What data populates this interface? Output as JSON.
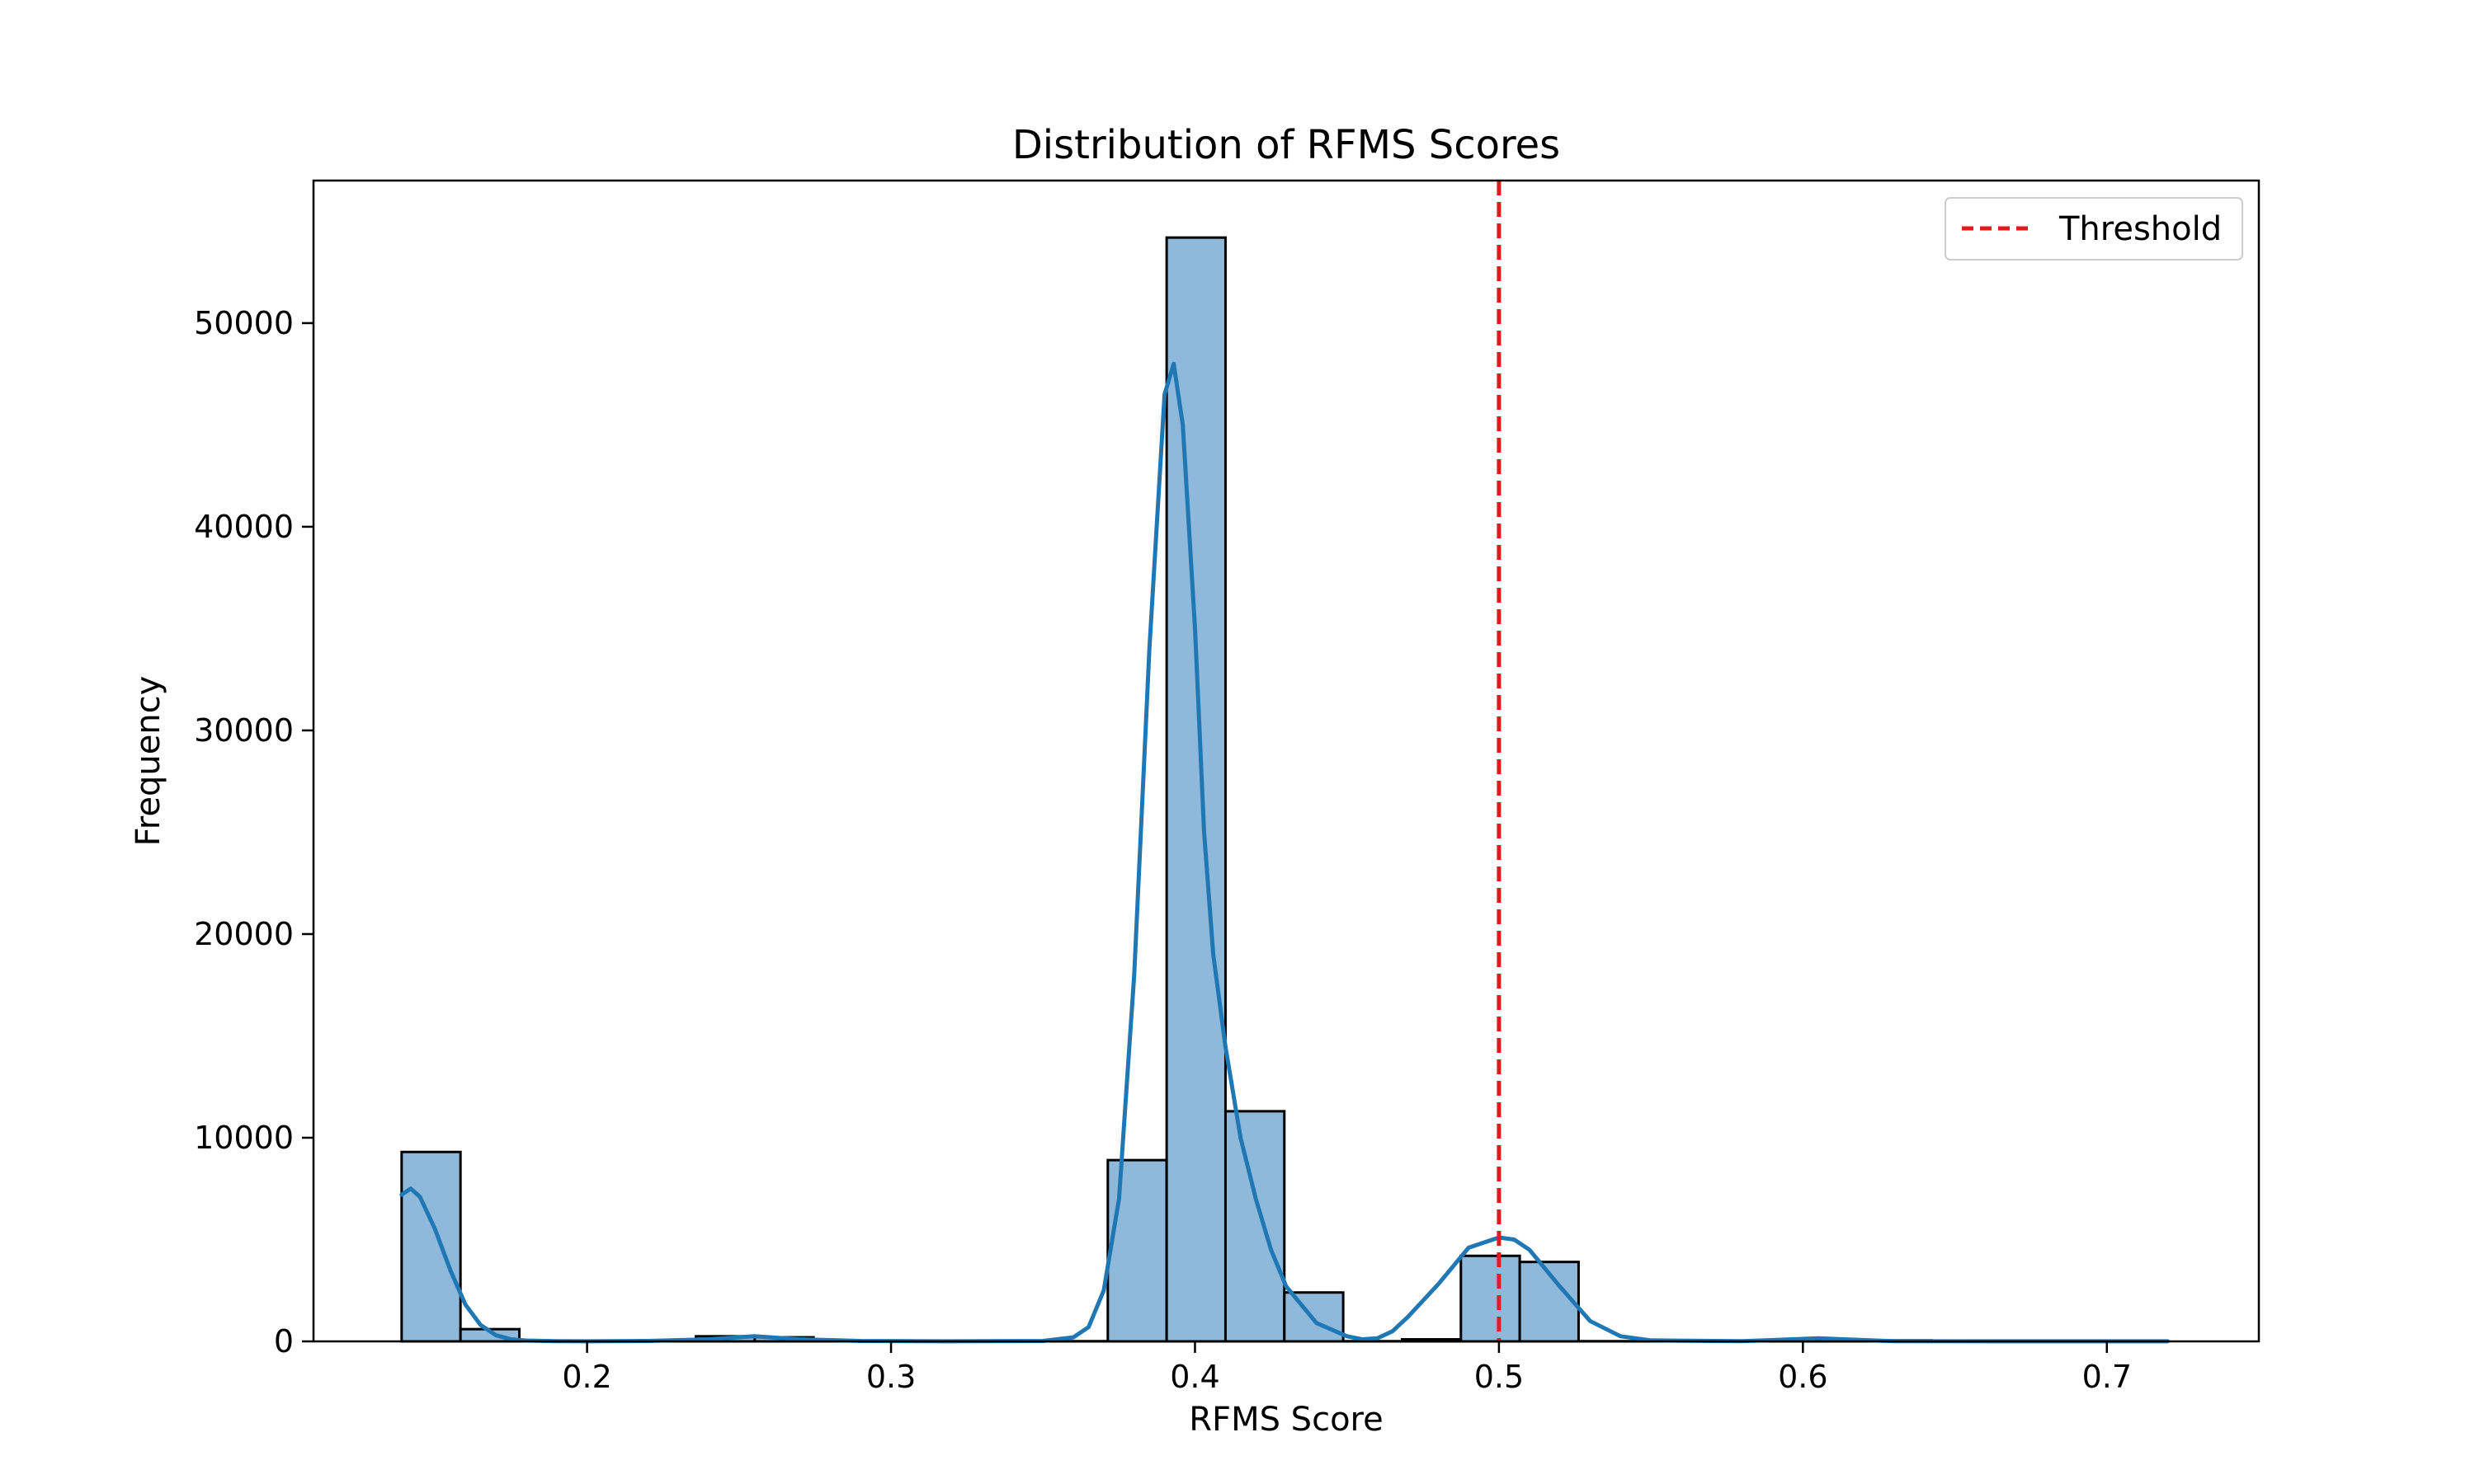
{
  "chart_data": {
    "type": "bar",
    "title": "Distribution of RFMS Scores",
    "xlabel": "RFMS Score",
    "ylabel": "Frequency",
    "xlim": [
      0.11,
      0.75
    ],
    "ylim": [
      0,
      57000
    ],
    "x_ticks": [
      0.2,
      0.3,
      0.4,
      0.5,
      0.6,
      0.7
    ],
    "x_tick_labels": [
      "0.2",
      "0.3",
      "0.4",
      "0.5",
      "0.6",
      "0.7"
    ],
    "y_ticks": [
      0,
      10000,
      20000,
      30000,
      40000,
      50000
    ],
    "y_tick_labels": [
      "0",
      "10000",
      "20000",
      "30000",
      "40000",
      "50000"
    ],
    "bin_start": 0.139,
    "bin_width": 0.01936,
    "values": [
      9300,
      600,
      30,
      40,
      50,
      250,
      200,
      10,
      10,
      10,
      10,
      10,
      8900,
      54200,
      11300,
      2400,
      10,
      100,
      4200,
      3900,
      10,
      10,
      10,
      10,
      60,
      50,
      10,
      10,
      10,
      10
    ],
    "bar_color": "#8fb9da",
    "bar_edge_color": "#000000",
    "kde": {
      "color": "#1f77b4",
      "x": [
        0.139,
        0.142,
        0.145,
        0.15,
        0.155,
        0.16,
        0.165,
        0.17,
        0.175,
        0.18,
        0.19,
        0.2,
        0.22,
        0.24,
        0.255,
        0.27,
        0.29,
        0.32,
        0.35,
        0.36,
        0.365,
        0.37,
        0.375,
        0.38,
        0.385,
        0.39,
        0.393,
        0.396,
        0.4,
        0.403,
        0.406,
        0.41,
        0.415,
        0.42,
        0.425,
        0.43,
        0.44,
        0.45,
        0.455,
        0.46,
        0.465,
        0.47,
        0.48,
        0.49,
        0.5,
        0.505,
        0.51,
        0.52,
        0.53,
        0.54,
        0.55,
        0.58,
        0.605,
        0.63,
        0.7,
        0.72
      ],
      "y": [
        7200,
        7500,
        7100,
        5500,
        3500,
        1800,
        800,
        300,
        100,
        40,
        10,
        5,
        20,
        100,
        250,
        100,
        20,
        5,
        20,
        200,
        700,
        2500,
        7000,
        18000,
        34000,
        46500,
        48000,
        45000,
        35000,
        25000,
        19000,
        14500,
        10000,
        7000,
        4500,
        2700,
        900,
        250,
        100,
        150,
        500,
        1200,
        2800,
        4600,
        5100,
        5000,
        4500,
        2700,
        1000,
        250,
        50,
        10,
        150,
        10,
        5,
        5
      ]
    },
    "threshold": {
      "x": 0.5,
      "color": "#e41a1c"
    },
    "legend": {
      "position": "top-right",
      "label": "Threshold"
    }
  }
}
